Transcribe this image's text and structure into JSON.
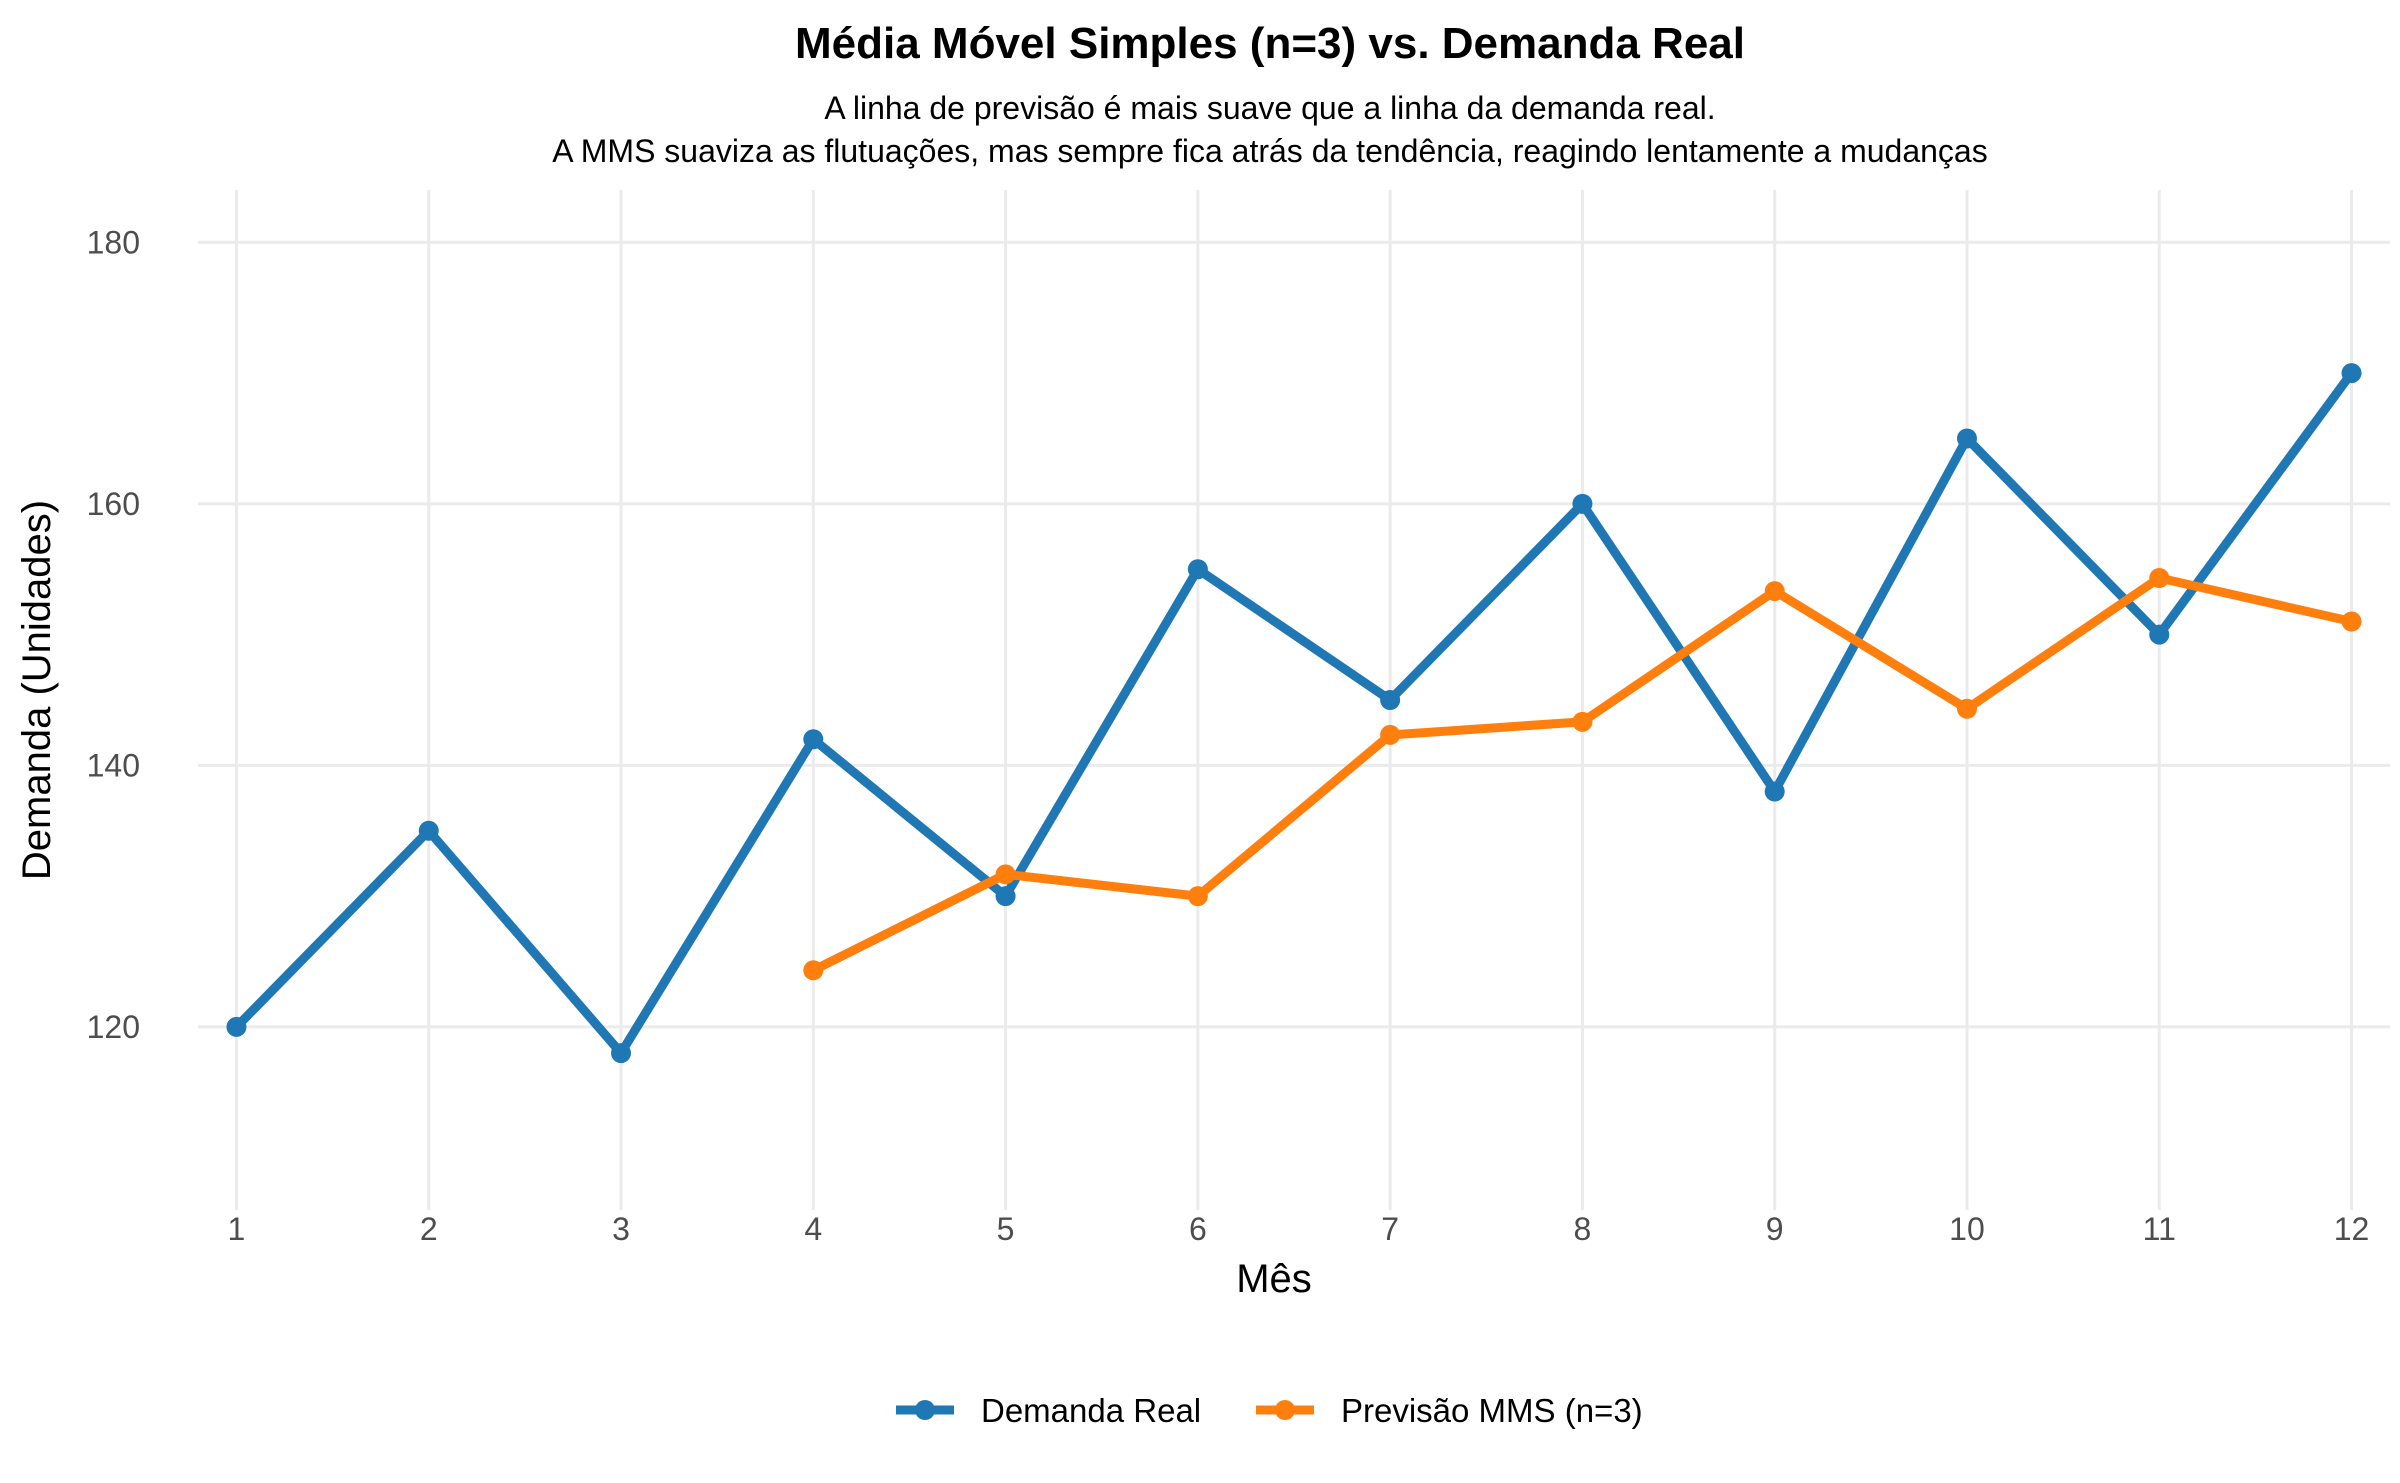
{
  "chart_data": {
    "type": "line",
    "title": "Média Móvel Simples (n=3) vs. Demanda Real",
    "subtitle": [
      "A linha de previsão é mais suave que a linha da demanda real.",
      "A MMS suaviza as flutuações, mas sempre fica atrás da tendência, reagindo lentamente a mudanças"
    ],
    "xlabel": "Mês",
    "ylabel": "Demanda (Unidades)",
    "x": [
      1,
      2,
      3,
      4,
      5,
      6,
      7,
      8,
      9,
      10,
      11,
      12
    ],
    "x_ticks": [
      "1",
      "2",
      "3",
      "4",
      "5",
      "6",
      "7",
      "8",
      "9",
      "10",
      "11",
      "12"
    ],
    "y_ticks": [
      "120",
      "140",
      "160",
      "180"
    ],
    "y_tick_values": [
      120,
      140,
      160,
      180
    ],
    "xlim": [
      0.8,
      12.2
    ],
    "ylim": [
      106,
      184
    ],
    "grid": true,
    "legend_position": "bottom",
    "series": [
      {
        "name": "Demanda Real",
        "color": "#1f77b4",
        "x": [
          1,
          2,
          3,
          4,
          5,
          6,
          7,
          8,
          9,
          10,
          11,
          12
        ],
        "values": [
          120,
          135,
          118,
          142,
          130,
          155,
          145,
          160,
          138,
          165,
          150,
          170
        ]
      },
      {
        "name": "Previsão MMS (n=3)",
        "color": "#ff7f0e",
        "x": [
          4,
          5,
          6,
          7,
          8,
          9,
          10,
          11,
          12
        ],
        "values": [
          124.33,
          131.67,
          130.0,
          142.33,
          143.33,
          153.33,
          144.33,
          154.33,
          151.0
        ]
      }
    ]
  }
}
